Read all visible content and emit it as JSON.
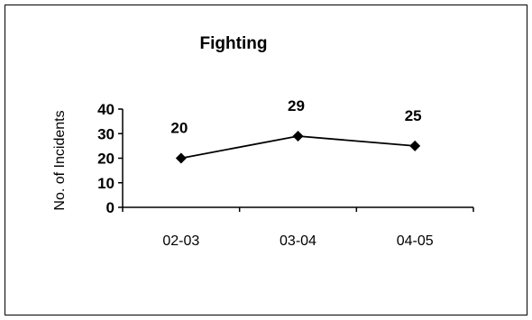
{
  "chart_data": {
    "type": "line",
    "title": "Fighting",
    "xlabel": "",
    "ylabel": "No. of Incidents",
    "categories": [
      "02-03",
      "03-04",
      "04-05"
    ],
    "series": [
      {
        "values": [
          20,
          29,
          25
        ],
        "data_labels": [
          "20",
          "29",
          "25"
        ]
      }
    ],
    "ylim": [
      0,
      40
    ],
    "yticks": [
      0,
      10,
      20,
      30,
      40
    ],
    "grid": false,
    "legend": "none",
    "marker": "diamond",
    "line_color": "#000000"
  }
}
